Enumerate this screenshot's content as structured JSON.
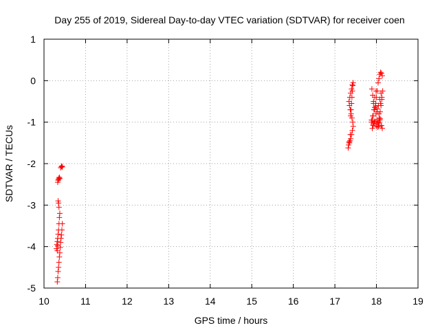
{
  "chart_data": {
    "type": "scatter",
    "title": "Day 255 of 2019, Sidereal Day-to-day VTEC variation (SDTVAR) for receiver coen",
    "xlabel": "GPS time / hours",
    "ylabel": "SDTVAR / TECUs",
    "xlim": [
      10,
      19
    ],
    "ylim": [
      -5,
      1
    ],
    "x_ticks": [
      10,
      11,
      12,
      13,
      14,
      15,
      16,
      17,
      18,
      19
    ],
    "y_ticks": [
      -5,
      -4,
      -3,
      -2,
      -1,
      0,
      1
    ],
    "grid": true,
    "marker": "plus",
    "color": "#ff0000",
    "series": [
      {
        "name": "SDTVAR",
        "x": [
          10.33,
          10.34,
          10.35,
          10.36,
          10.37,
          10.38,
          10.4,
          10.42,
          10.43,
          10.44,
          10.32,
          10.33,
          10.34,
          10.35,
          10.36,
          10.37,
          10.38,
          10.39,
          10.4,
          10.41,
          10.42,
          10.43,
          10.44,
          10.3,
          10.31,
          10.32,
          10.33,
          10.34,
          10.35,
          10.36,
          10.37,
          10.38,
          10.36,
          10.35,
          10.34,
          10.33,
          10.32,
          17.32,
          17.33,
          17.34,
          17.35,
          17.36,
          17.38,
          17.4,
          17.42,
          17.44,
          17.43,
          17.41,
          17.39,
          17.37,
          17.35,
          17.34,
          17.36,
          17.38,
          17.4,
          17.42,
          17.44,
          17.43,
          17.42,
          17.41,
          17.4,
          17.39,
          17.38,
          17.37,
          17.36,
          17.88,
          17.9,
          17.92,
          17.95,
          17.98,
          18.0,
          18.02,
          18.04,
          18.06,
          18.08,
          18.1,
          18.12,
          18.14,
          17.89,
          17.91,
          17.93,
          17.96,
          17.99,
          18.01,
          18.03,
          18.05,
          18.07,
          18.09,
          18.11,
          18.13,
          17.9,
          17.92,
          17.94,
          17.97,
          18.0,
          18.03,
          18.06,
          18.09,
          18.12,
          18.14,
          18.11,
          18.08,
          18.05,
          18.02,
          17.99,
          17.96,
          17.93,
          17.88,
          17.91,
          17.94,
          17.98,
          18.02,
          18.06,
          18.1,
          18.13,
          18.15,
          17.92,
          17.96,
          18.0,
          18.04,
          18.08,
          18.12
        ],
        "y": [
          -2.45,
          -2.4,
          -2.38,
          -2.35,
          -2.33,
          -2.36,
          -2.1,
          -2.07,
          -2.06,
          -2.08,
          -4.85,
          -4.75,
          -4.6,
          -4.5,
          -4.38,
          -4.25,
          -4.15,
          -4.02,
          -3.9,
          -3.8,
          -3.72,
          -3.6,
          -3.45,
          -4.05,
          -3.95,
          -3.88,
          -3.8,
          -3.7,
          -3.6,
          -3.45,
          -3.3,
          -3.2,
          -3.05,
          -2.95,
          -2.9,
          -3.98,
          -4.1,
          -1.62,
          -1.55,
          -1.48,
          -1.5,
          -1.45,
          -1.4,
          -1.3,
          -1.2,
          -1.1,
          -1.0,
          -0.9,
          -0.8,
          -0.7,
          -0.6,
          -0.5,
          -0.4,
          -0.3,
          -0.2,
          -0.1,
          -0.05,
          -0.12,
          -0.25,
          -0.4,
          -0.55,
          -0.7,
          -0.85,
          -1.3,
          -1.45,
          -1.0,
          -0.95,
          -0.85,
          -0.7,
          -0.55,
          -0.4,
          -0.25,
          -0.05,
          0.05,
          0.15,
          0.2,
          0.18,
          0.12,
          -0.2,
          -0.35,
          -0.5,
          -0.65,
          -0.8,
          -0.95,
          -1.05,
          -1.1,
          -0.9,
          -0.75,
          -0.6,
          -0.45,
          -1.15,
          -1.08,
          -1.02,
          -0.98,
          -1.05,
          -1.12,
          -1.0,
          -0.92,
          -1.08,
          -1.15,
          -0.3,
          -0.45,
          -0.6,
          -0.75,
          -0.25,
          -0.4,
          -0.55,
          -0.95,
          -0.85,
          -0.7,
          -0.62,
          -0.68,
          -0.8,
          -0.55,
          -0.4,
          -0.25,
          -1.05,
          -0.98,
          -1.1,
          -1.02,
          -0.95,
          -1.08
        ]
      }
    ]
  }
}
